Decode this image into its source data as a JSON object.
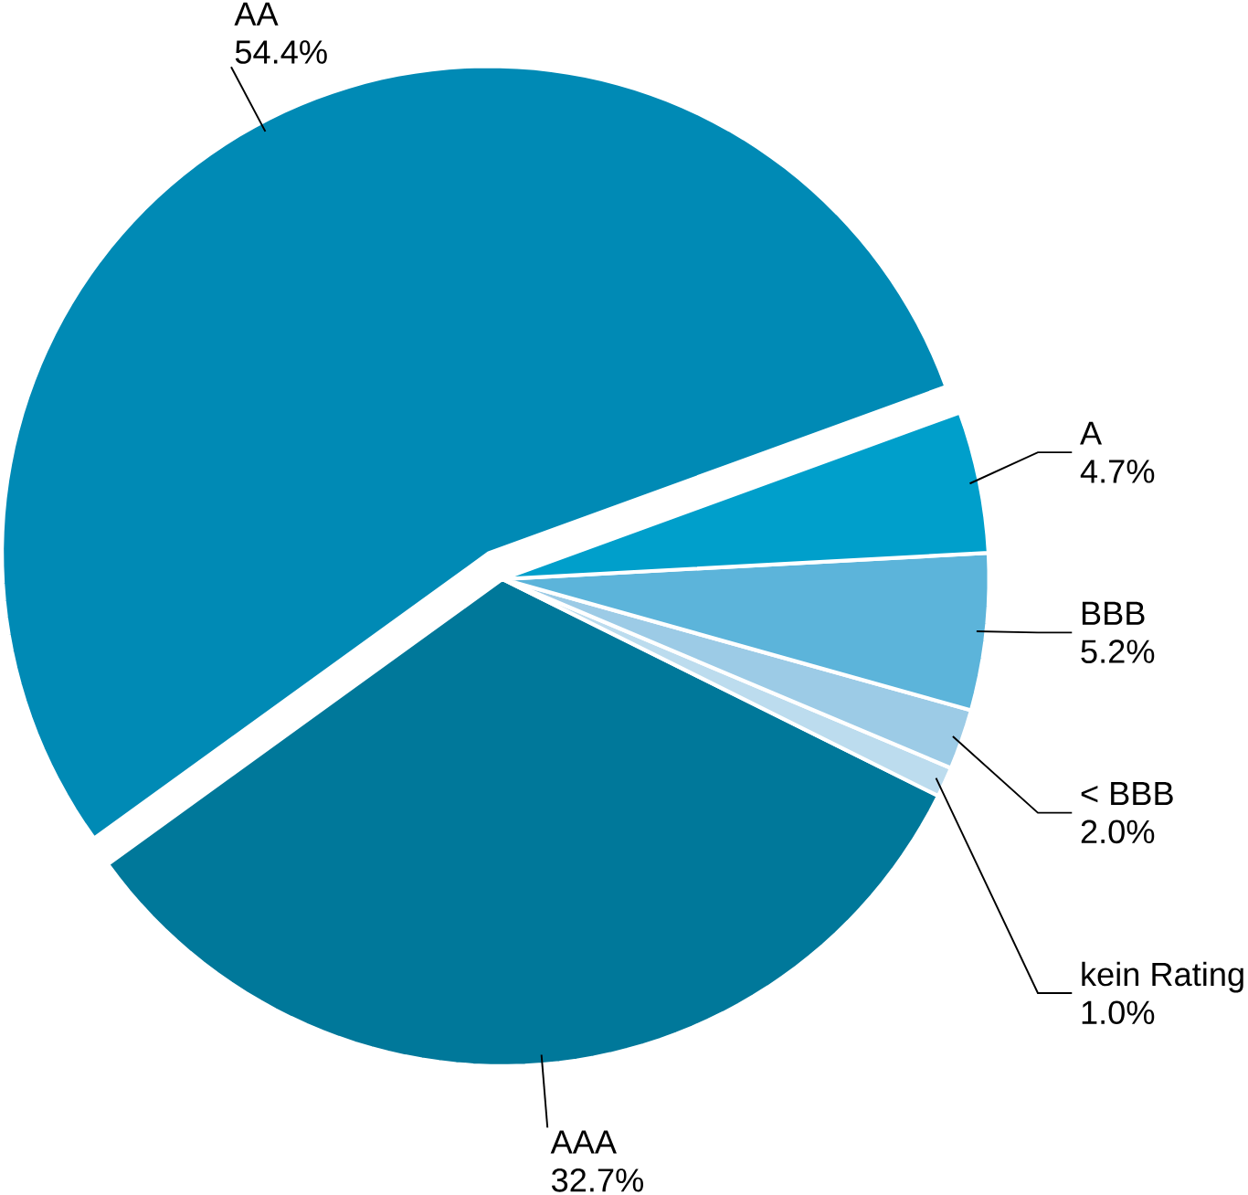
{
  "chart_data": {
    "type": "pie",
    "categories": [
      "AA",
      "AAA",
      "kein Rating",
      "< BBB",
      "BBB",
      "A"
    ],
    "values": [
      54.4,
      32.7,
      1.0,
      2.0,
      5.2,
      4.7
    ],
    "value_labels": [
      "54.4%",
      "32.7%",
      "1.0%",
      "2.0%",
      "5.2%",
      "4.7%"
    ],
    "colors": [
      "#008ab5",
      "#00789a",
      "#bcdcee",
      "#9ccbe6",
      "#5cb4da",
      "#009fcb"
    ]
  }
}
